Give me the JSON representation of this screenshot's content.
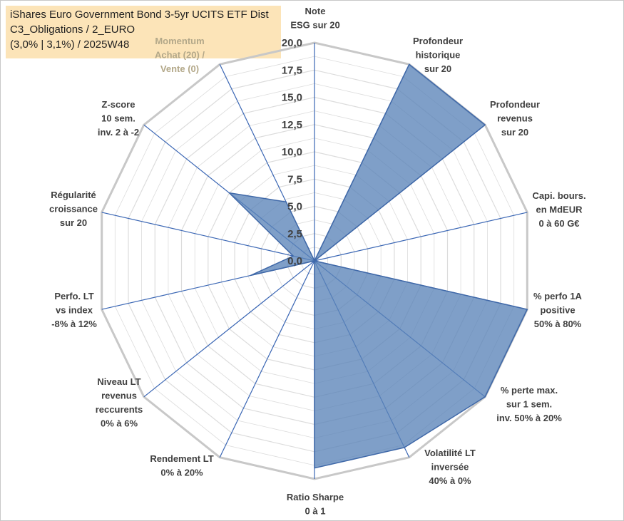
{
  "header": {
    "line1": "iShares Euro Government Bond 3-5yr UCITS ETF Dist",
    "line2": "C3_Obligations / 2_EURO",
    "line3": "(3,0% | 3,1%) / 2025W48"
  },
  "colors": {
    "fill": "#5b84b8",
    "stroke": "#3f68a8",
    "spoke": "#3a66b4",
    "grid_outer": "#c8c8c8",
    "grid_inner": "#dcdcdc",
    "title_bg": "#fce4b8"
  },
  "chart_data": {
    "type": "radar",
    "rmin": 0,
    "rmax": 20,
    "ticks": [
      "0,0",
      "2,5",
      "5,0",
      "7,5",
      "10,0",
      "12,5",
      "15,0",
      "17,5",
      "20,0"
    ],
    "grid": true,
    "axes": [
      {
        "label": [
          "Note",
          "ESG sur 20"
        ],
        "value": 0
      },
      {
        "label": [
          "Profondeur",
          "historique",
          "sur 20"
        ],
        "value": 20
      },
      {
        "label": [
          "Profondeur",
          "revenus",
          "sur 20"
        ],
        "value": 20
      },
      {
        "label": [
          "Capi. bours.",
          "en MdEUR",
          "0 à 60 G€"
        ],
        "value": 0
      },
      {
        "label": [
          "% perfo 1A",
          "positive",
          "50% à 80%"
        ],
        "value": 20
      },
      {
        "label": [
          "% perte max.",
          "sur 1 sem.",
          "inv. 50% à 20%"
        ],
        "value": 20
      },
      {
        "label": [
          "Volatilité LT",
          "inversée",
          "40% à 0%"
        ],
        "value": 19
      },
      {
        "label": [
          "Ratio Sharpe",
          "0 à 1"
        ],
        "value": 19
      },
      {
        "label": [
          "Rendement LT",
          "0% à 20%"
        ],
        "value": 0
      },
      {
        "label": [
          "Niveau LT",
          "revenus",
          "reccurents",
          "0% à 6%"
        ],
        "value": 0
      },
      {
        "label": [
          "Perfo. LT",
          "vs index",
          "-8% à 12%"
        ],
        "value": 6
      },
      {
        "label": [
          "Régularité",
          "croissance",
          "sur 20"
        ],
        "value": 2
      },
      {
        "label": [
          "Z-score",
          "10 sem.",
          "inv. 2 à -2"
        ],
        "value": 10
      },
      {
        "label": [
          "Momentum",
          "Achat (20) /",
          "Vente (0)"
        ],
        "value": 6
      }
    ]
  }
}
